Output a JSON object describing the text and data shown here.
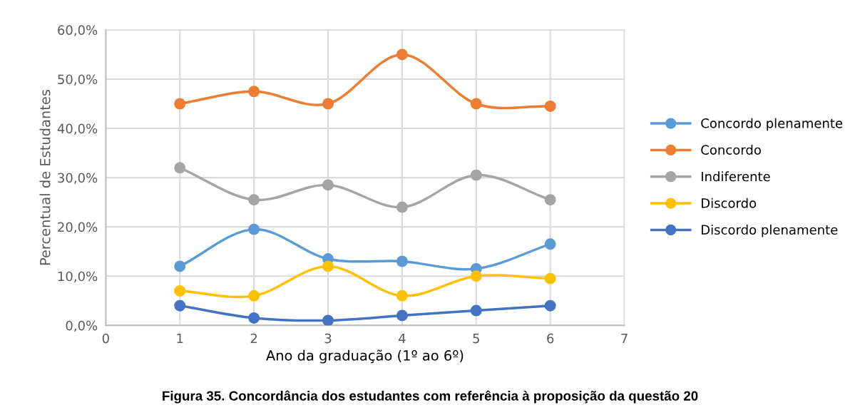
{
  "chart_data": {
    "type": "line",
    "title": "Figura 35. Concordância dos estudantes com referência à proposição da questão 20",
    "xlabel": "Ano da graduação (1º ao 6º)",
    "ylabel": "Percentual de Estudantes",
    "x": [
      1,
      2,
      3,
      4,
      5,
      6
    ],
    "series": [
      {
        "name": "Concordo plenamente",
        "color": "#5b9bd5",
        "values": [
          12.0,
          19.5,
          13.5,
          13.0,
          11.5,
          16.5
        ]
      },
      {
        "name": "Concordo",
        "color": "#ed7d31",
        "values": [
          45.0,
          47.5,
          45.0,
          55.0,
          45.0,
          44.5
        ]
      },
      {
        "name": "Indiferente",
        "color": "#a5a5a5",
        "values": [
          32.0,
          25.5,
          28.5,
          24.0,
          30.5,
          25.5
        ]
      },
      {
        "name": "Discordo",
        "color": "#ffc000",
        "values": [
          7.0,
          6.0,
          12.0,
          6.0,
          10.0,
          9.5
        ]
      },
      {
        "name": "Discordo plenamente",
        "color": "#4472c4",
        "values": [
          4.0,
          1.5,
          1.0,
          2.0,
          3.0,
          4.0
        ]
      }
    ],
    "xlim": [
      0,
      7
    ],
    "xticks": [
      0,
      1,
      2,
      3,
      4,
      5,
      6,
      7
    ],
    "ylim": [
      0,
      60
    ],
    "yticks": [
      {
        "value": 0,
        "label": "0,0%"
      },
      {
        "value": 10,
        "label": "10,0%"
      },
      {
        "value": 20,
        "label": "20,0%"
      },
      {
        "value": 30,
        "label": "30,0%"
      },
      {
        "value": 40,
        "label": "40,0%"
      },
      {
        "value": 50,
        "label": "50,0%"
      },
      {
        "value": 60,
        "label": "60,0%"
      }
    ],
    "grid": true,
    "legend": "right",
    "marker": "circle",
    "line_style": "solid"
  }
}
